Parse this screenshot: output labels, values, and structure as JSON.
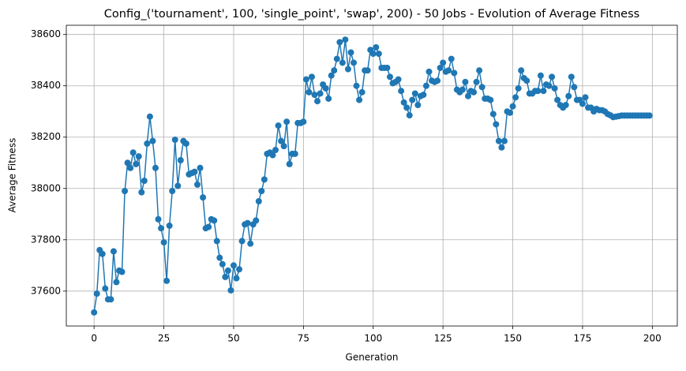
{
  "chart_data": {
    "type": "line",
    "title": "Config_('tournament', 100, 'single_point', 'swap', 200) - 50 Jobs - Evolution of Average Fitness",
    "xlabel": "Generation",
    "ylabel": "Average Fitness",
    "x": [
      0,
      1,
      2,
      3,
      4,
      5,
      6,
      7,
      8,
      9,
      10,
      11,
      12,
      13,
      14,
      15,
      16,
      17,
      18,
      19,
      20,
      21,
      22,
      23,
      24,
      25,
      26,
      27,
      28,
      29,
      30,
      31,
      32,
      33,
      34,
      35,
      36,
      37,
      38,
      39,
      40,
      41,
      42,
      43,
      44,
      45,
      46,
      47,
      48,
      49,
      50,
      51,
      52,
      53,
      54,
      55,
      56,
      57,
      58,
      59,
      60,
      61,
      62,
      63,
      64,
      65,
      66,
      67,
      68,
      69,
      70,
      71,
      72,
      73,
      74,
      75,
      76,
      77,
      78,
      79,
      80,
      81,
      82,
      83,
      84,
      85,
      86,
      87,
      88,
      89,
      90,
      91,
      92,
      93,
      94,
      95,
      96,
      97,
      98,
      99,
      100,
      101,
      102,
      103,
      104,
      105,
      106,
      107,
      108,
      109,
      110,
      111,
      112,
      113,
      114,
      115,
      116,
      117,
      118,
      119,
      120,
      121,
      122,
      123,
      124,
      125,
      126,
      127,
      128,
      129,
      130,
      131,
      132,
      133,
      134,
      135,
      136,
      137,
      138,
      139,
      140,
      141,
      142,
      143,
      144,
      145,
      146,
      147,
      148,
      149,
      150,
      151,
      152,
      153,
      154,
      155,
      156,
      157,
      158,
      159,
      160,
      161,
      162,
      163,
      164,
      165,
      166,
      167,
      168,
      169,
      170,
      171,
      172,
      173,
      174,
      175,
      176,
      177,
      178,
      179,
      180,
      181,
      182,
      183,
      184,
      185,
      186,
      187,
      188,
      189,
      190,
      191,
      192,
      193,
      194,
      195,
      196,
      197,
      198,
      199
    ],
    "series": [
      {
        "color": "#1f77b4",
        "values": [
          37517,
          37590,
          37760,
          37745,
          37610,
          37568,
          37568,
          37755,
          37635,
          37680,
          37675,
          37990,
          38100,
          38080,
          38140,
          38095,
          38125,
          37985,
          38030,
          38175,
          38280,
          38185,
          38080,
          37880,
          37845,
          37790,
          37640,
          37855,
          37990,
          38190,
          38010,
          38110,
          38185,
          38175,
          38055,
          38060,
          38065,
          38015,
          38080,
          37965,
          37845,
          37850,
          37880,
          37875,
          37795,
          37730,
          37705,
          37655,
          37680,
          37603,
          37700,
          37650,
          37685,
          37795,
          37860,
          37865,
          37785,
          37860,
          37875,
          37950,
          37990,
          38035,
          38135,
          38140,
          38130,
          38150,
          38245,
          38185,
          38165,
          38260,
          38095,
          38135,
          38135,
          38255,
          38255,
          38260,
          38425,
          38375,
          38435,
          38365,
          38340,
          38370,
          38405,
          38390,
          38350,
          38440,
          38460,
          38505,
          38570,
          38490,
          38580,
          38465,
          38530,
          38490,
          38400,
          38345,
          38375,
          38460,
          38460,
          38540,
          38525,
          38550,
          38525,
          38470,
          38470,
          38470,
          38435,
          38410,
          38415,
          38425,
          38380,
          38335,
          38315,
          38285,
          38345,
          38370,
          38325,
          38360,
          38365,
          38400,
          38455,
          38420,
          38415,
          38420,
          38470,
          38490,
          38455,
          38460,
          38505,
          38450,
          38385,
          38375,
          38385,
          38415,
          38360,
          38380,
          38375,
          38415,
          38460,
          38395,
          38350,
          38350,
          38345,
          38290,
          38250,
          38185,
          38160,
          38185,
          38300,
          38295,
          38320,
          38355,
          38390,
          38460,
          38430,
          38420,
          38370,
          38370,
          38380,
          38380,
          38440,
          38380,
          38405,
          38400,
          38435,
          38390,
          38345,
          38325,
          38315,
          38325,
          38360,
          38435,
          38395,
          38345,
          38345,
          38330,
          38355,
          38315,
          38315,
          38300,
          38310,
          38305,
          38305,
          38300,
          38290,
          38285,
          38278,
          38280,
          38282,
          38284,
          38284,
          38284,
          38284,
          38284,
          38284,
          38284,
          38284,
          38284,
          38284,
          38284
        ]
      }
    ],
    "xlim": [
      -9.95,
      208.95
    ],
    "xticks": [
      0,
      25,
      50,
      75,
      100,
      125,
      150,
      175,
      200
    ],
    "ylim": [
      37464,
      38636
    ],
    "yticks": [
      37600,
      37800,
      38000,
      38200,
      38400,
      38600
    ],
    "grid": true,
    "marker": "o"
  }
}
